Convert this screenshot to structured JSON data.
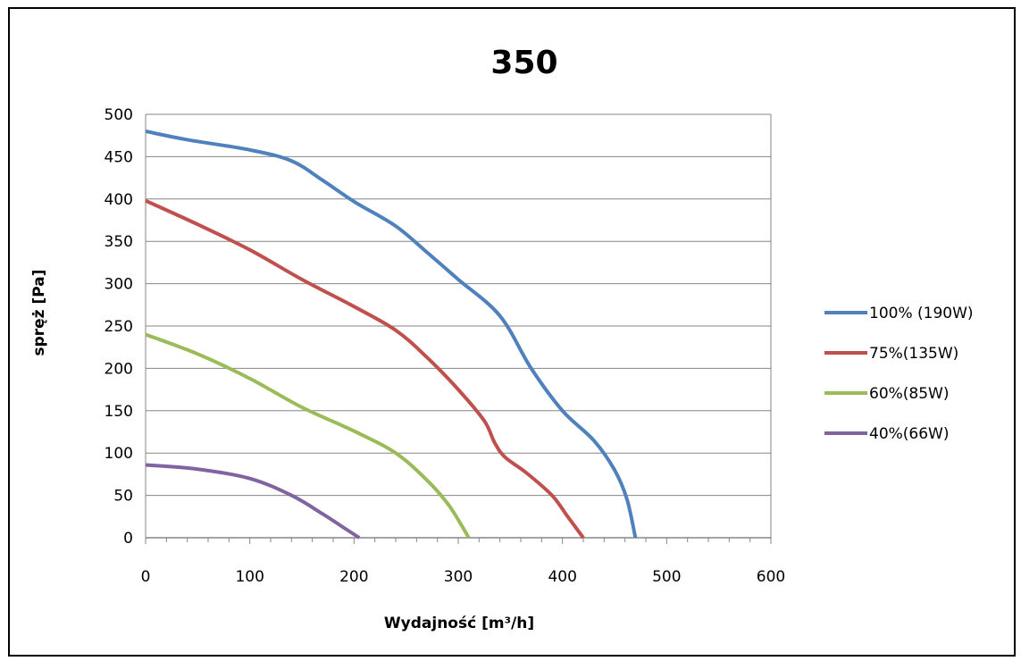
{
  "chart_data": {
    "type": "line",
    "title": "350",
    "xlabel": "Wydajność [m³/h]",
    "ylabel": "spręż [Pa]",
    "xlim": [
      0,
      600
    ],
    "ylim": [
      0,
      500
    ],
    "x_ticks": [
      0,
      100,
      200,
      300,
      400,
      500,
      600
    ],
    "y_ticks": [
      0,
      50,
      100,
      150,
      200,
      250,
      300,
      350,
      400,
      450,
      500
    ],
    "grid": "horizontal",
    "legend_position": "right",
    "series": [
      {
        "name": "100% (190W)",
        "color": "#4F81BD",
        "points": [
          [
            0,
            480
          ],
          [
            40,
            470
          ],
          [
            100,
            458
          ],
          [
            140,
            445
          ],
          [
            170,
            422
          ],
          [
            200,
            397
          ],
          [
            240,
            368
          ],
          [
            270,
            337
          ],
          [
            300,
            305
          ],
          [
            340,
            262
          ],
          [
            370,
            200
          ],
          [
            400,
            150
          ],
          [
            430,
            115
          ],
          [
            450,
            80
          ],
          [
            462,
            45
          ],
          [
            470,
            0
          ]
        ]
      },
      {
        "name": "75%(135W)",
        "color": "#C0504D",
        "points": [
          [
            0,
            398
          ],
          [
            50,
            370
          ],
          [
            100,
            340
          ],
          [
            150,
            305
          ],
          [
            200,
            273
          ],
          [
            240,
            245
          ],
          [
            270,
            213
          ],
          [
            300,
            175
          ],
          [
            325,
            138
          ],
          [
            335,
            112
          ],
          [
            345,
            95
          ],
          [
            365,
            77
          ],
          [
            390,
            50
          ],
          [
            405,
            25
          ],
          [
            420,
            0
          ]
        ]
      },
      {
        "name": "60%(85W)",
        "color": "#9BBB59",
        "points": [
          [
            0,
            240
          ],
          [
            50,
            217
          ],
          [
            100,
            188
          ],
          [
            150,
            154
          ],
          [
            200,
            126
          ],
          [
            240,
            100
          ],
          [
            270,
            68
          ],
          [
            290,
            40
          ],
          [
            303,
            15
          ],
          [
            310,
            0
          ]
        ]
      },
      {
        "name": "40%(66W)",
        "color": "#8064A2",
        "points": [
          [
            0,
            86
          ],
          [
            50,
            81
          ],
          [
            100,
            70
          ],
          [
            140,
            50
          ],
          [
            170,
            28
          ],
          [
            190,
            12
          ],
          [
            205,
            0
          ]
        ]
      }
    ]
  }
}
